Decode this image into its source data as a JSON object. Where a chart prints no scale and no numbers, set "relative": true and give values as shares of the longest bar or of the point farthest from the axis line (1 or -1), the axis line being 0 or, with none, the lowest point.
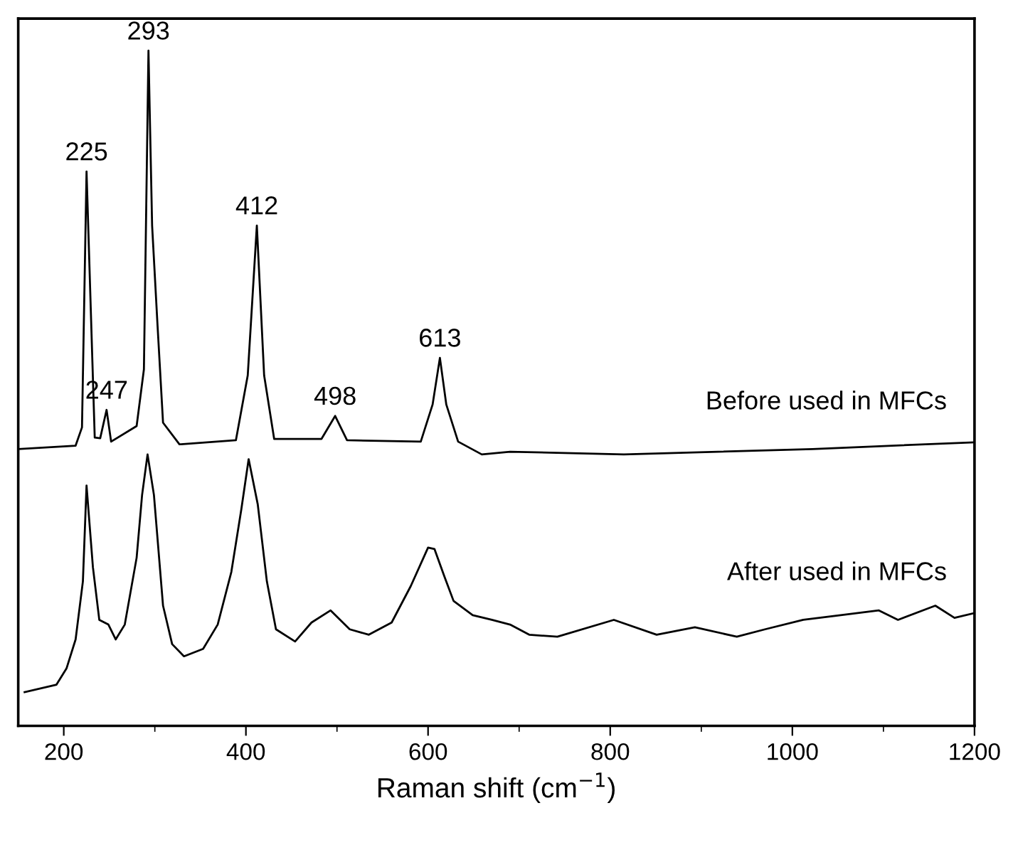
{
  "chart_data": {
    "type": "line",
    "relative": true,
    "xlabel": "Raman shift (cm$^{−1}$)",
    "xlim": [
      150,
      1200
    ],
    "xticks": [
      200,
      {
        "value": 300,
        "label": null
      },
      400,
      {
        "value": 500,
        "label": null
      },
      600,
      {
        "value": 700,
        "label": null
      },
      800,
      {
        "value": 900,
        "label": null
      },
      1000,
      {
        "value": 1100,
        "label": null
      },
      1200
    ],
    "grid": false,
    "legend": false,
    "marker": "none",
    "line_style": "solid",
    "series": [
      {
        "name": "Before used in MFCs",
        "color": "#000000",
        "x": [
          150,
          213,
          220,
          225,
          234,
          240,
          247,
          252,
          280,
          288,
          293,
          297,
          303,
          309,
          327,
          389,
          402,
          412,
          420,
          431,
          483,
          498,
          511,
          592,
          605,
          613,
          620,
          633,
          659,
          690,
          815,
          1022,
          1200
        ],
        "values": [
          0.41,
          0.415,
          0.442,
          0.821,
          0.427,
          0.426,
          0.468,
          0.421,
          0.444,
          0.528,
          1.0,
          0.741,
          0.592,
          0.449,
          0.417,
          0.423,
          0.519,
          0.741,
          0.519,
          0.425,
          0.425,
          0.459,
          0.423,
          0.421,
          0.476,
          0.545,
          0.476,
          0.421,
          0.402,
          0.406,
          0.402,
          0.41,
          0.42
        ]
      },
      {
        "name": "After used in MFCs",
        "color": "#000000",
        "x": [
          157,
          192,
          203,
          213,
          221,
          225,
          232,
          239,
          249,
          257,
          267,
          280,
          286,
          292,
          299,
          309,
          319,
          332,
          353,
          369,
          384,
          395,
          403,
          413,
          423,
          433,
          454,
          472,
          493,
          514,
          535,
          560,
          581,
          600,
          607,
          618,
          628,
          649,
          670,
          690,
          711,
          742,
          804,
          851,
          893,
          939,
          970,
          1012,
          1053,
          1095,
          1116,
          1157,
          1178,
          1200
        ],
        "values": [
          0.05,
          0.061,
          0.085,
          0.128,
          0.214,
          0.356,
          0.235,
          0.157,
          0.15,
          0.128,
          0.15,
          0.249,
          0.342,
          0.402,
          0.342,
          0.178,
          0.121,
          0.103,
          0.114,
          0.15,
          0.228,
          0.321,
          0.395,
          0.328,
          0.214,
          0.143,
          0.125,
          0.153,
          0.171,
          0.143,
          0.135,
          0.153,
          0.207,
          0.264,
          0.262,
          0.221,
          0.185,
          0.164,
          0.157,
          0.15,
          0.135,
          0.132,
          0.157,
          0.135,
          0.146,
          0.132,
          0.143,
          0.157,
          0.164,
          0.171,
          0.157,
          0.178,
          0.16,
          0.167
        ]
      }
    ],
    "annotations": [
      {
        "text": "225",
        "x": 225,
        "y": 0.821
      },
      {
        "text": "247",
        "x": 247,
        "y": 0.468
      },
      {
        "text": "293",
        "x": 293,
        "y": 1.0
      },
      {
        "text": "412",
        "x": 412,
        "y": 0.741
      },
      {
        "text": "498",
        "x": 498,
        "y": 0.459
      },
      {
        "text": "613",
        "x": 613,
        "y": 0.545
      }
    ]
  }
}
